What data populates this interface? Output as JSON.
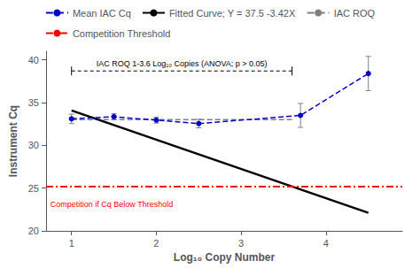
{
  "chart_data": {
    "type": "line",
    "xlabel": "Log₁₀ Copy Number",
    "ylabel": "Instrument Cq",
    "xlim": [
      0.7,
      4.9
    ],
    "ylim": [
      20,
      41
    ],
    "xticks": [
      1,
      2,
      3,
      4
    ],
    "yticks": [
      20,
      25,
      30,
      35,
      40
    ],
    "grid": false,
    "legend": "top",
    "series": [
      {
        "name": "Mean IAC Cq",
        "color": "#0000cc",
        "line_style": "dashed",
        "marker": "circle",
        "x": [
          1.0,
          1.5,
          2.0,
          2.5,
          3.7,
          4.5
        ],
        "values": [
          33.1,
          33.35,
          32.95,
          32.55,
          33.5,
          38.4
        ],
        "yerr": [
          0.55,
          0.35,
          0.35,
          0.5,
          1.4,
          2.0
        ]
      },
      {
        "name": "Fitted Curve; Y = 37.5 -3.42X",
        "color": "black",
        "line_style": "solid",
        "marker": "none",
        "x": [
          1.0,
          4.5
        ],
        "values": [
          34.08,
          22.11
        ]
      },
      {
        "name": "IAC ROQ",
        "color": "gray",
        "line_style": "dashed",
        "marker": "none",
        "x": [
          1.0,
          3.6
        ],
        "values": [
          33.0,
          33.0
        ]
      },
      {
        "name": "Competition Threshold",
        "type": "hline",
        "color": "red",
        "line_style": "dashdot",
        "values": [
          25.2
        ]
      }
    ],
    "annotations": [
      {
        "text": "IAC ROQ 1-3.6 Log₁₀ Copies (ANOVA; p > 0.05)",
        "x": [
          1.0,
          3.6
        ],
        "y": 38.7,
        "color": "black"
      },
      {
        "text": "Competition if Cq Below Threshold",
        "x": 0.75,
        "y": 23.6,
        "color": "red"
      }
    ]
  }
}
